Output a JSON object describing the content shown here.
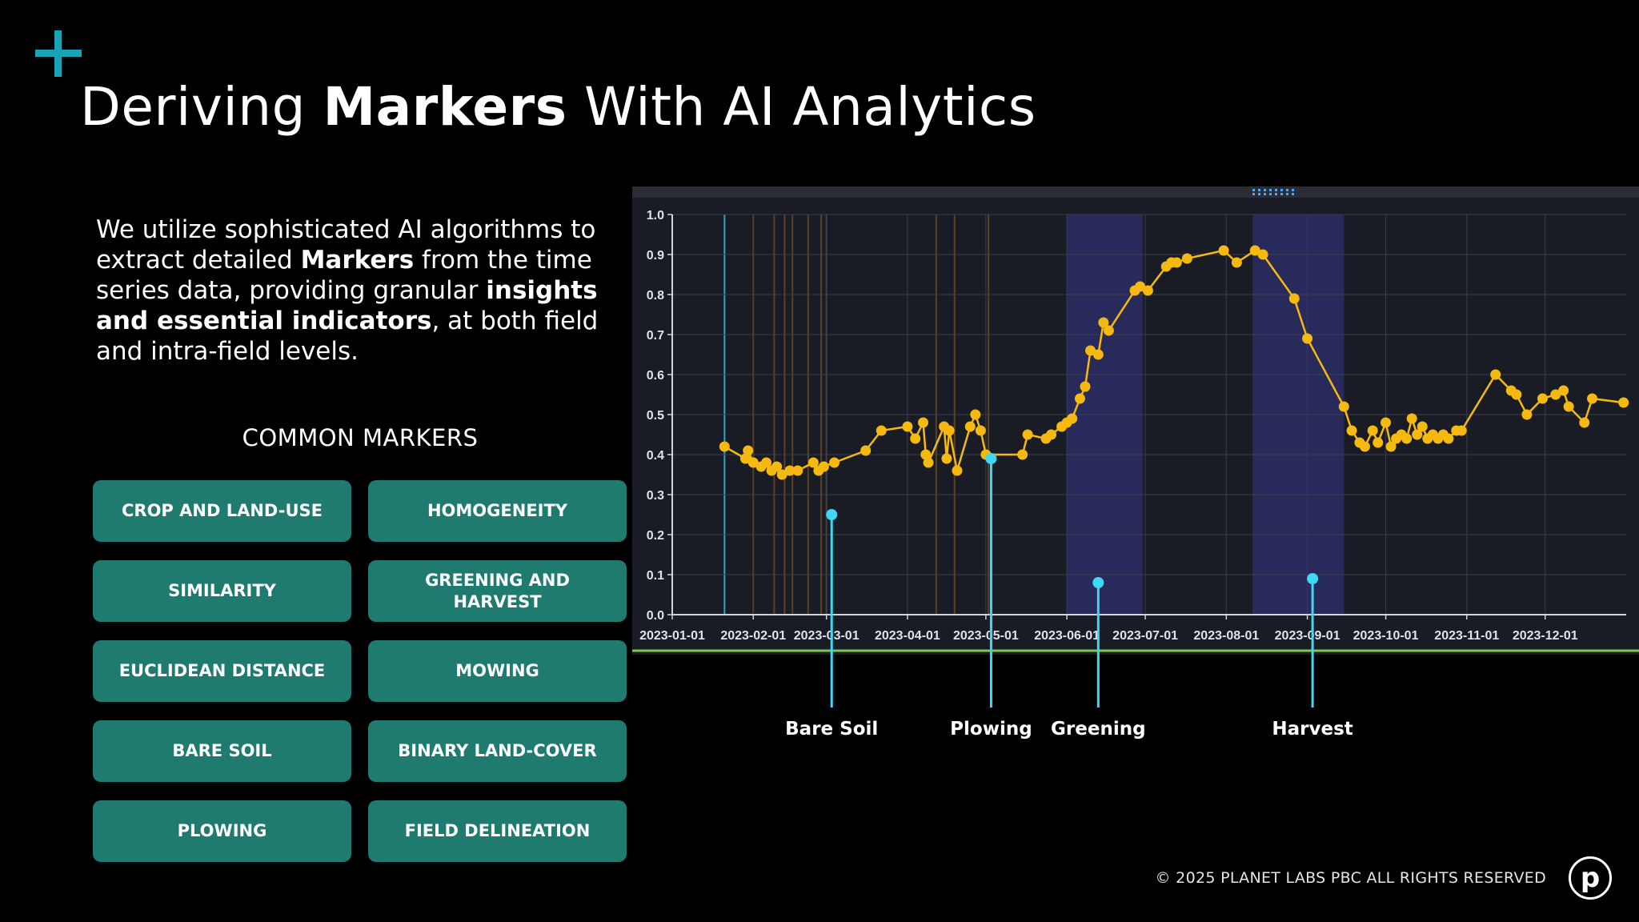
{
  "slide": {
    "title_pre": "Deriving ",
    "title_bold": "Markers",
    "title_post": " With AI Analytics",
    "intro": {
      "p1": "We utilize sophisticated AI algorithms to extract detailed ",
      "b1": "Markers",
      "p2": " from the time series data, providing granular ",
      "b2": "insights and essential indicators",
      "p3": ", at both field and intra-field levels."
    },
    "markers_heading": "COMMON MARKERS",
    "markers": [
      "CROP AND LAND-USE",
      "HOMOGENEITY",
      "SIMILARITY",
      "GREENING AND HARVEST",
      "EUCLIDEAN DISTANCE",
      "MOWING",
      "BARE SOIL",
      "BINARY LAND-COVER",
      "PLOWING",
      "FIELD DELINEATION"
    ],
    "footer": "© 2025 PLANET LABS PBC ALL RIGHTS RESERVED",
    "logo_letter": "p"
  },
  "colors": {
    "accent": "#1aa3b5",
    "button": "#1f7a70",
    "series": "#f5b90f",
    "marker_pin": "#3ed8f5",
    "shaded_band": "#2b2d66",
    "baseline": "#7ec850"
  },
  "chart_data": {
    "type": "line",
    "x_ticks": [
      "2023-01-01",
      "2023-02-01",
      "2023-03-01",
      "2023-04-01",
      "2023-05-01",
      "2023-06-01",
      "2023-07-01",
      "2023-08-01",
      "2023-09-01",
      "2023-10-01",
      "2023-11-01",
      "2023-12-01"
    ],
    "y_ticks": [
      "0.0",
      "0.1",
      "0.2",
      "0.3",
      "0.4",
      "0.5",
      "0.6",
      "0.7",
      "0.8",
      "0.9",
      "1.0"
    ],
    "ylim": [
      0,
      1.0
    ],
    "xlim": [
      "2023-01-01",
      "2024-01-01"
    ],
    "shaded_periods": [
      [
        "2023-06-01",
        "2023-06-30"
      ],
      [
        "2023-08-11",
        "2023-09-15"
      ]
    ],
    "series": [
      {
        "values": [
          [
            "2023-01-21",
            0.42
          ],
          [
            "2023-01-29",
            0.39
          ],
          [
            "2023-01-30",
            0.41
          ],
          [
            "2023-02-01",
            0.38
          ],
          [
            "2023-02-04",
            0.37
          ],
          [
            "2023-02-06",
            0.38
          ],
          [
            "2023-02-08",
            0.36
          ],
          [
            "2023-02-10",
            0.37
          ],
          [
            "2023-02-12",
            0.35
          ],
          [
            "2023-02-15",
            0.36
          ],
          [
            "2023-02-18",
            0.36
          ],
          [
            "2023-02-24",
            0.38
          ],
          [
            "2023-02-26",
            0.36
          ],
          [
            "2023-02-28",
            0.37
          ],
          [
            "2023-03-04",
            0.38
          ],
          [
            "2023-03-16",
            0.41
          ],
          [
            "2023-03-22",
            0.46
          ],
          [
            "2023-04-01",
            0.47
          ],
          [
            "2023-04-04",
            0.44
          ],
          [
            "2023-04-07",
            0.48
          ],
          [
            "2023-04-08",
            0.4
          ],
          [
            "2023-04-09",
            0.38
          ],
          [
            "2023-04-15",
            0.47
          ],
          [
            "2023-04-16",
            0.39
          ],
          [
            "2023-04-17",
            0.46
          ],
          [
            "2023-04-20",
            0.36
          ],
          [
            "2023-04-25",
            0.47
          ],
          [
            "2023-04-27",
            0.5
          ],
          [
            "2023-04-29",
            0.46
          ],
          [
            "2023-05-01",
            0.4
          ],
          [
            "2023-05-15",
            0.4
          ],
          [
            "2023-05-17",
            0.45
          ],
          [
            "2023-05-24",
            0.44
          ],
          [
            "2023-05-26",
            0.45
          ],
          [
            "2023-05-30",
            0.47
          ],
          [
            "2023-06-01",
            0.48
          ],
          [
            "2023-06-03",
            0.49
          ],
          [
            "2023-06-06",
            0.54
          ],
          [
            "2023-06-08",
            0.57
          ],
          [
            "2023-06-10",
            0.66
          ],
          [
            "2023-06-13",
            0.65
          ],
          [
            "2023-06-15",
            0.73
          ],
          [
            "2023-06-17",
            0.71
          ],
          [
            "2023-06-27",
            0.81
          ],
          [
            "2023-06-29",
            0.82
          ],
          [
            "2023-07-02",
            0.81
          ],
          [
            "2023-07-09",
            0.87
          ],
          [
            "2023-07-11",
            0.88
          ],
          [
            "2023-07-13",
            0.88
          ],
          [
            "2023-07-17",
            0.89
          ],
          [
            "2023-07-31",
            0.91
          ],
          [
            "2023-08-05",
            0.88
          ],
          [
            "2023-08-12",
            0.91
          ],
          [
            "2023-08-15",
            0.9
          ],
          [
            "2023-08-27",
            0.79
          ],
          [
            "2023-09-01",
            0.69
          ],
          [
            "2023-09-15",
            0.52
          ],
          [
            "2023-09-18",
            0.46
          ],
          [
            "2023-09-21",
            0.43
          ],
          [
            "2023-09-23",
            0.42
          ],
          [
            "2023-09-26",
            0.46
          ],
          [
            "2023-09-28",
            0.43
          ],
          [
            "2023-10-01",
            0.48
          ],
          [
            "2023-10-03",
            0.42
          ],
          [
            "2023-10-05",
            0.44
          ],
          [
            "2023-10-07",
            0.45
          ],
          [
            "2023-10-09",
            0.44
          ],
          [
            "2023-10-11",
            0.49
          ],
          [
            "2023-10-13",
            0.45
          ],
          [
            "2023-10-15",
            0.47
          ],
          [
            "2023-10-17",
            0.44
          ],
          [
            "2023-10-19",
            0.45
          ],
          [
            "2023-10-21",
            0.44
          ],
          [
            "2023-10-23",
            0.45
          ],
          [
            "2023-10-25",
            0.44
          ],
          [
            "2023-10-28",
            0.46
          ],
          [
            "2023-10-30",
            0.46
          ],
          [
            "2023-11-12",
            0.6
          ],
          [
            "2023-11-18",
            0.56
          ],
          [
            "2023-11-20",
            0.55
          ],
          [
            "2023-11-24",
            0.5
          ],
          [
            "2023-11-30",
            0.54
          ],
          [
            "2023-12-05",
            0.55
          ],
          [
            "2023-12-08",
            0.56
          ],
          [
            "2023-12-10",
            0.52
          ],
          [
            "2023-12-16",
            0.48
          ],
          [
            "2023-12-19",
            0.54
          ],
          [
            "2023-12-31",
            0.53
          ]
        ]
      }
    ],
    "annotations": [
      {
        "label": "Bare Soil",
        "x": "2023-03-03",
        "y": 0.25
      },
      {
        "label": "Plowing",
        "x": "2023-05-03",
        "y": 0.39
      },
      {
        "label": "Greening",
        "x": "2023-06-13",
        "y": 0.08
      },
      {
        "label": "Harvest",
        "x": "2023-09-03",
        "y": 0.09
      }
    ]
  }
}
